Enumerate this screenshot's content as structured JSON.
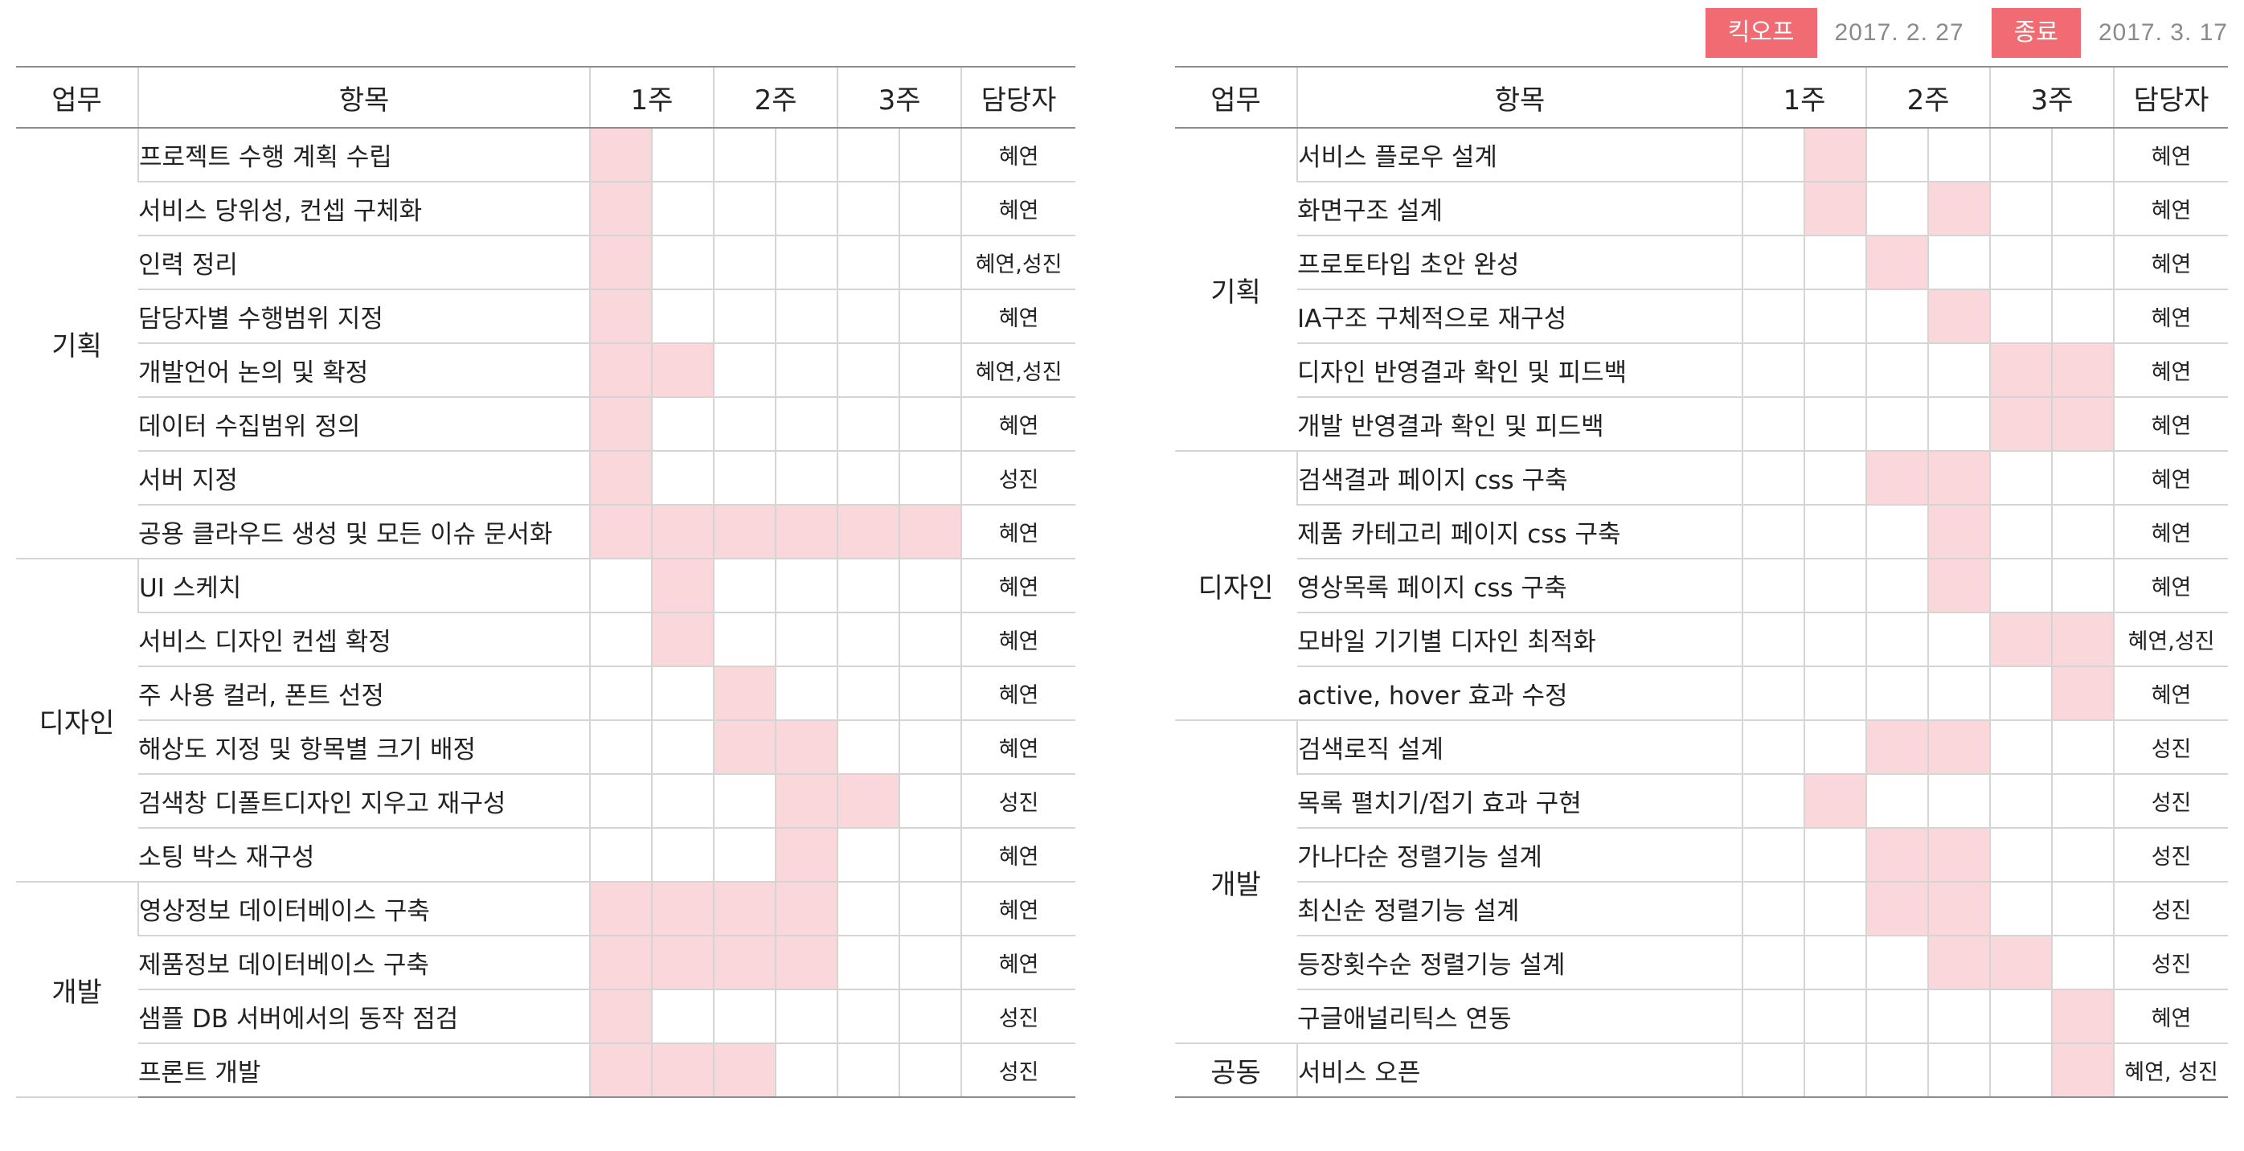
{
  "header": {
    "kickoff_label": "킥오프",
    "kickoff_date": "2017. 2. 27",
    "end_label": "종료",
    "end_date": "2017. 3. 17"
  },
  "colors": {
    "accent": "#f06b72",
    "active_cell": "#fad7da",
    "grid": "#d5d5d5"
  },
  "columns": {
    "category": "업무",
    "task": "항목",
    "weeks": [
      "1주",
      "2주",
      "3주"
    ],
    "owner": "담당자"
  },
  "tables": [
    {
      "groups": [
        {
          "name": "기획",
          "rows": [
            {
              "task": "프로젝트 수행 계획 수립",
              "cells": [
                1,
                0,
                0,
                0,
                0,
                0
              ],
              "owner": "혜연"
            },
            {
              "task": "서비스 당위성, 컨셉 구체화",
              "cells": [
                1,
                0,
                0,
                0,
                0,
                0
              ],
              "owner": "혜연"
            },
            {
              "task": "인력 정리",
              "cells": [
                1,
                0,
                0,
                0,
                0,
                0
              ],
              "owner": "혜연,성진"
            },
            {
              "task": "담당자별 수행범위 지정",
              "cells": [
                1,
                0,
                0,
                0,
                0,
                0
              ],
              "owner": "혜연"
            },
            {
              "task": "개발언어 논의 및 확정",
              "cells": [
                1,
                1,
                0,
                0,
                0,
                0
              ],
              "owner": "혜연,성진"
            },
            {
              "task": "데이터 수집범위 정의",
              "cells": [
                1,
                0,
                0,
                0,
                0,
                0
              ],
              "owner": "혜연"
            },
            {
              "task": "서버 지정",
              "cells": [
                1,
                0,
                0,
                0,
                0,
                0
              ],
              "owner": "성진"
            },
            {
              "task": "공용 클라우드 생성 및 모든 이슈 문서화",
              "cells": [
                1,
                1,
                1,
                1,
                1,
                1
              ],
              "owner": "혜연"
            }
          ]
        },
        {
          "name": "디자인",
          "rows": [
            {
              "task": "UI 스케치",
              "cells": [
                0,
                1,
                0,
                0,
                0,
                0
              ],
              "owner": "혜연"
            },
            {
              "task": "서비스 디자인 컨셉 확정",
              "cells": [
                0,
                1,
                0,
                0,
                0,
                0
              ],
              "owner": "혜연"
            },
            {
              "task": "주 사용 컬러, 폰트 선정",
              "cells": [
                0,
                0,
                1,
                0,
                0,
                0
              ],
              "owner": "혜연"
            },
            {
              "task": "해상도 지정 및 항목별 크기 배정",
              "cells": [
                0,
                0,
                1,
                1,
                0,
                0
              ],
              "owner": "혜연"
            },
            {
              "task": "검색창 디폴트디자인 지우고 재구성",
              "cells": [
                0,
                0,
                0,
                1,
                1,
                0
              ],
              "owner": "성진"
            },
            {
              "task": "소팅 박스 재구성",
              "cells": [
                0,
                0,
                0,
                1,
                0,
                0
              ],
              "owner": "혜연"
            }
          ]
        },
        {
          "name": "개발",
          "rows": [
            {
              "task": "영상정보 데이터베이스 구축",
              "cells": [
                1,
                1,
                1,
                1,
                0,
                0
              ],
              "owner": "혜연"
            },
            {
              "task": "제품정보 데이터베이스 구축",
              "cells": [
                1,
                1,
                1,
                1,
                0,
                0
              ],
              "owner": "혜연"
            },
            {
              "task": "샘플 DB 서버에서의 동작 점검",
              "cells": [
                1,
                0,
                0,
                0,
                0,
                0
              ],
              "owner": "성진"
            },
            {
              "task": "프론트 개발",
              "cells": [
                1,
                1,
                1,
                0,
                0,
                0
              ],
              "owner": "성진"
            }
          ]
        }
      ]
    },
    {
      "groups": [
        {
          "name": "기획",
          "rows": [
            {
              "task": "서비스 플로우 설계",
              "cells": [
                0,
                1,
                0,
                0,
                0,
                0
              ],
              "owner": "혜연"
            },
            {
              "task": "화면구조 설계",
              "cells": [
                0,
                1,
                0,
                1,
                0,
                0
              ],
              "owner": "혜연"
            },
            {
              "task": "프로토타입 초안 완성",
              "cells": [
                0,
                0,
                1,
                0,
                0,
                0
              ],
              "owner": "혜연"
            },
            {
              "task": "IA구조 구체적으로 재구성",
              "cells": [
                0,
                0,
                0,
                1,
                0,
                0
              ],
              "owner": "혜연"
            },
            {
              "task": "디자인 반영결과 확인 및 피드백",
              "cells": [
                0,
                0,
                0,
                0,
                1,
                1
              ],
              "owner": "혜연"
            },
            {
              "task": "개발 반영결과 확인 및 피드백",
              "cells": [
                0,
                0,
                0,
                0,
                1,
                1
              ],
              "owner": "혜연"
            }
          ]
        },
        {
          "name": "디자인",
          "rows": [
            {
              "task": "검색결과 페이지 css 구축",
              "cells": [
                0,
                0,
                1,
                1,
                0,
                0
              ],
              "owner": "혜연"
            },
            {
              "task": "제품 카테고리 페이지 css 구축",
              "cells": [
                0,
                0,
                0,
                1,
                0,
                0
              ],
              "owner": "혜연"
            },
            {
              "task": "영상목록 페이지 css 구축",
              "cells": [
                0,
                0,
                0,
                1,
                0,
                0
              ],
              "owner": "혜연"
            },
            {
              "task": "모바일 기기별 디자인 최적화",
              "cells": [
                0,
                0,
                0,
                0,
                1,
                1
              ],
              "owner": "혜연,성진"
            },
            {
              "task": "active, hover 효과 수정",
              "cells": [
                0,
                0,
                0,
                0,
                0,
                1
              ],
              "owner": "혜연"
            }
          ]
        },
        {
          "name": "개발",
          "rows": [
            {
              "task": "검색로직 설계",
              "cells": [
                0,
                0,
                1,
                1,
                0,
                0
              ],
              "owner": "성진"
            },
            {
              "task": "목록 펼치기/접기 효과 구현",
              "cells": [
                0,
                1,
                0,
                0,
                0,
                0
              ],
              "owner": "성진"
            },
            {
              "task": "가나다순 정렬기능 설계",
              "cells": [
                0,
                0,
                1,
                1,
                0,
                0
              ],
              "owner": "성진"
            },
            {
              "task": "최신순 정렬기능 설계",
              "cells": [
                0,
                0,
                1,
                1,
                0,
                0
              ],
              "owner": "성진"
            },
            {
              "task": "등장횟수순 정렬기능 설계",
              "cells": [
                0,
                0,
                0,
                1,
                1,
                0
              ],
              "owner": "성진"
            },
            {
              "task": "구글애널리틱스 연동",
              "cells": [
                0,
                0,
                0,
                0,
                0,
                1
              ],
              "owner": "혜연"
            }
          ]
        },
        {
          "name": "공동",
          "rows": [
            {
              "task": "서비스 오픈",
              "cells": [
                0,
                0,
                0,
                0,
                0,
                1
              ],
              "owner": "혜연, 성진"
            }
          ]
        }
      ]
    }
  ]
}
